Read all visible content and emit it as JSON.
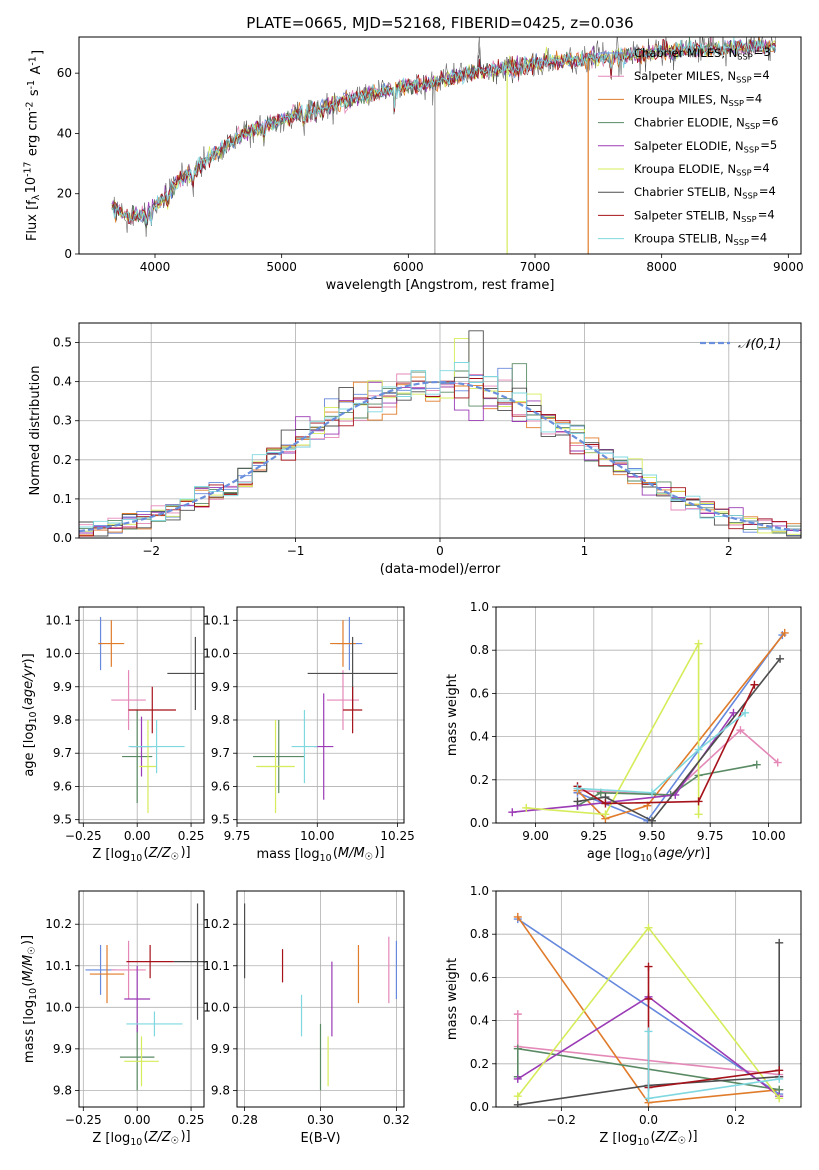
{
  "figure_title": "PLATE=0665, MJD=52168, FIBERID=0425, z=0.036",
  "series": [
    {
      "label": "Chabrier MILES, N$_{SSP}$=3",
      "name": "Chabrier MILES",
      "nssp": "3",
      "color": "#6689dd"
    },
    {
      "label": "Salpeter MILES, N$_{SSP}$=4",
      "name": "Salpeter MILES",
      "nssp": "4",
      "color": "#e488b8"
    },
    {
      "label": "Kroupa MILES, N$_{SSP}$=4",
      "name": "Kroupa MILES",
      "nssp": "4",
      "color": "#e07b2a"
    },
    {
      "label": "Chabrier ELODIE, N$_{SSP}$=6",
      "name": "Chabrier ELODIE",
      "nssp": "6",
      "color": "#5a8a64"
    },
    {
      "label": "Salpeter ELODIE, N$_{SSP}$=5",
      "name": "Salpeter ELODIE",
      "nssp": "5",
      "color": "#9b3bb5"
    },
    {
      "label": "Kroupa ELODIE, N$_{SSP}$=4",
      "name": "Kroupa ELODIE",
      "nssp": "4",
      "color": "#d6ec5a"
    },
    {
      "label": "Chabrier STELIB, N$_{SSP}$=4",
      "name": "Chabrier STELIB",
      "nssp": "4",
      "color": "#4d4d4d"
    },
    {
      "label": "Salpeter STELIB, N$_{SSP}$=4",
      "name": "Salpeter STELIB",
      "nssp": "4",
      "color": "#a5121a"
    },
    {
      "label": "Kroupa STELIB, N$_{SSP}$=4",
      "name": "Kroupa STELIB",
      "nssp": "4",
      "color": "#7fd8df"
    }
  ],
  "chart_data": [
    {
      "id": "spectrum",
      "type": "line",
      "title": "PLATE=0665, MJD=52168, FIBERID=0425, z=0.036",
      "xlabel": "wavelength [Angstrom, rest frame]",
      "ylabel": "Flux [f$_\\lambda$10$^{-17}$ erg cm$^{-2}$ s$^{-1}$ A$^{-1}$]",
      "xlim": [
        3400,
        9100
      ],
      "ylim": [
        0,
        72
      ],
      "xticks": [
        4000,
        5000,
        6000,
        7000,
        8000,
        9000
      ],
      "yticks": [
        0,
        20,
        40,
        60
      ],
      "continuum": [
        [
          3650,
          16
        ],
        [
          3800,
          12
        ],
        [
          3900,
          13
        ],
        [
          4000,
          16
        ],
        [
          4100,
          20
        ],
        [
          4200,
          25
        ],
        [
          4300,
          27
        ],
        [
          4400,
          31
        ],
        [
          4500,
          34
        ],
        [
          4700,
          40
        ],
        [
          4900,
          43
        ],
        [
          5100,
          46
        ],
        [
          5300,
          48
        ],
        [
          5500,
          51
        ],
        [
          5700,
          53
        ],
        [
          5900,
          55
        ],
        [
          6100,
          56
        ],
        [
          6300,
          58
        ],
        [
          6500,
          60
        ],
        [
          6700,
          61
        ],
        [
          7000,
          63
        ],
        [
          7200,
          64
        ],
        [
          7500,
          65
        ],
        [
          7800,
          66
        ],
        [
          8000,
          67
        ],
        [
          8400,
          68
        ],
        [
          8900,
          69
        ]
      ],
      "gaps": [
        [
          6210,
          6190
        ],
        [
          6780,
          5
        ],
        [
          7420,
          3
        ]
      ],
      "legend_loc": "upper right",
      "grid": false
    },
    {
      "id": "residuals",
      "type": "histogram",
      "xlabel": "(data-model)/error",
      "ylabel": "Normed distribution",
      "xlim": [
        -2.5,
        2.5
      ],
      "ylim": [
        0,
        0.55
      ],
      "xticks": [
        -2,
        -1,
        0,
        1,
        2
      ],
      "yticks": [
        0.0,
        0.1,
        0.2,
        0.3,
        0.4,
        0.5
      ],
      "bin_width": 0.1,
      "reference_label": "$\\mathcal{N}(0,1)$",
      "reference_curve": "gaussian mean 0 sigma 1",
      "legend_loc": "upper right",
      "grid": true
    },
    {
      "id": "age_vs_Z",
      "type": "errorbar",
      "xlabel": "Z [log$_{10}$($Z/Z_\\odot$)]",
      "ylabel": "age  [log$_{10}$($age/yr$)]",
      "xlim": [
        -0.27,
        0.31
      ],
      "ylim": [
        9.49,
        10.14
      ],
      "xticks": [
        -0.25,
        0.0,
        0.25
      ],
      "yticks": [
        9.5,
        9.6,
        9.7,
        9.8,
        9.9,
        10.0,
        10.1
      ],
      "points": [
        {
          "series": 0,
          "x": -0.17,
          "xerr": 0.01,
          "y": 10.03,
          "yerr": 0.08
        },
        {
          "series": 1,
          "x": -0.04,
          "xerr": 0.08,
          "y": 9.86,
          "yerr": 0.09
        },
        {
          "series": 2,
          "x": -0.12,
          "xerr": 0.06,
          "y": 10.03,
          "yerr": 0.07
        },
        {
          "series": 3,
          "x": 0.0,
          "xerr": 0.07,
          "y": 9.69,
          "yerr": 0.14
        },
        {
          "series": 4,
          "x": 0.02,
          "xerr": 0.05,
          "y": 9.72,
          "yerr": 0.09
        },
        {
          "series": 5,
          "x": 0.05,
          "xerr": 0.04,
          "y": 9.66,
          "yerr": 0.14
        },
        {
          "series": 6,
          "x": 0.27,
          "xerr": 0.13,
          "y": 9.94,
          "yerr": 0.11
        },
        {
          "series": 7,
          "x": 0.07,
          "xerr": 0.11,
          "y": 9.83,
          "yerr": 0.07
        },
        {
          "series": 8,
          "x": 0.09,
          "xerr": 0.13,
          "y": 9.72,
          "yerr": 0.08
        }
      ],
      "grid": true
    },
    {
      "id": "age_vs_mass",
      "type": "errorbar",
      "xlabel": "mass [log$_{10}$($M/M_\\odot$)]",
      "ylabel": "",
      "xlim": [
        9.75,
        10.27
      ],
      "ylim": [
        9.49,
        10.14
      ],
      "xticks": [
        9.75,
        10.0,
        10.25
      ],
      "yticks": [
        9.5,
        9.6,
        9.7,
        9.8,
        9.9,
        10.0,
        10.1
      ],
      "points": [
        {
          "series": 0,
          "x": 10.1,
          "xerr": 0.04,
          "y": 10.03,
          "yerr": 0.08
        },
        {
          "series": 1,
          "x": 10.08,
          "xerr": 0.05,
          "y": 9.86,
          "yerr": 0.09
        },
        {
          "series": 2,
          "x": 10.08,
          "xerr": 0.04,
          "y": 10.03,
          "yerr": 0.07
        },
        {
          "series": 3,
          "x": 9.88,
          "xerr": 0.08,
          "y": 9.69,
          "yerr": 0.11
        },
        {
          "series": 4,
          "x": 10.02,
          "xerr": 0.03,
          "y": 9.72,
          "yerr": 0.16
        },
        {
          "series": 5,
          "x": 9.87,
          "xerr": 0.06,
          "y": 9.66,
          "yerr": 0.14
        },
        {
          "series": 6,
          "x": 10.11,
          "xerr": 0.14,
          "y": 9.94,
          "yerr": 0.11
        },
        {
          "series": 7,
          "x": 10.11,
          "xerr": 0.03,
          "y": 9.83,
          "yerr": 0.07
        },
        {
          "series": 8,
          "x": 9.96,
          "xerr": 0.04,
          "y": 9.72,
          "yerr": 0.11
        }
      ],
      "grid": true
    },
    {
      "id": "weight_vs_age",
      "type": "line",
      "xlabel": "age  [log$_{10}$($age/yr$)]",
      "ylabel": "mass weight",
      "xlim": [
        8.83,
        10.14
      ],
      "ylim": [
        0,
        1.0
      ],
      "xticks": [
        9.0,
        9.25,
        9.5,
        9.75,
        10.0
      ],
      "yticks": [
        0.0,
        0.2,
        0.4,
        0.6,
        0.8,
        1.0
      ],
      "lines": [
        {
          "series": 0,
          "x": [
            9.18,
            9.48,
            10.06
          ],
          "y": [
            0.14,
            0.01,
            0.87
          ]
        },
        {
          "series": 1,
          "x": [
            9.18,
            9.58,
            9.88,
            10.04
          ],
          "y": [
            0.15,
            0.13,
            0.43,
            0.28
          ]
        },
        {
          "series": 2,
          "x": [
            9.18,
            9.3,
            9.48,
            10.07
          ],
          "y": [
            0.15,
            0.02,
            0.08,
            0.88
          ]
        },
        {
          "series": 3,
          "x": [
            9.18,
            9.28,
            9.58,
            9.7,
            9.95
          ],
          "y": [
            0.08,
            0.14,
            0.13,
            0.22,
            0.27
          ]
        },
        {
          "series": 4,
          "x": [
            8.9,
            9.18,
            9.6,
            9.85
          ],
          "y": [
            0.05,
            0.08,
            0.13,
            0.51
          ]
        },
        {
          "series": 5,
          "x": [
            8.96,
            9.3,
            9.7,
            9.7
          ],
          "y": [
            0.07,
            0.04,
            0.83,
            0.04
          ]
        },
        {
          "series": 6,
          "x": [
            9.18,
            9.3,
            9.5,
            10.05
          ],
          "y": [
            0.1,
            0.12,
            0.01,
            0.76
          ]
        },
        {
          "series": 7,
          "x": [
            9.18,
            9.3,
            9.7,
            9.94
          ],
          "y": [
            0.17,
            0.09,
            0.1,
            0.64
          ]
        },
        {
          "series": 8,
          "x": [
            9.18,
            9.5,
            9.7,
            9.9
          ],
          "y": [
            0.16,
            0.14,
            0.34,
            0.51
          ]
        }
      ],
      "grid": true
    },
    {
      "id": "mass_vs_Z",
      "type": "errorbar",
      "xlabel": "Z [log$_{10}$($Z/Z_\\odot$)]",
      "ylabel": "mass [log$_{10}$($M/M_\\odot$)]",
      "xlim": [
        -0.27,
        0.31
      ],
      "ylim": [
        9.76,
        10.28
      ],
      "xticks": [
        -0.25,
        0.0,
        0.25
      ],
      "yticks": [
        9.8,
        9.9,
        10.0,
        10.1,
        10.2
      ],
      "points": [
        {
          "series": 0,
          "x": -0.17,
          "xerr": 0.07,
          "y": 10.09,
          "yerr": 0.06
        },
        {
          "series": 1,
          "x": -0.04,
          "xerr": 0.08,
          "y": 10.09,
          "yerr": 0.07
        },
        {
          "series": 2,
          "x": -0.14,
          "xerr": 0.08,
          "y": 10.08,
          "yerr": 0.07
        },
        {
          "series": 3,
          "x": 0.0,
          "xerr": 0.08,
          "y": 9.88,
          "yerr": 0.08
        },
        {
          "series": 4,
          "x": 0.0,
          "xerr": 0.06,
          "y": 10.02,
          "yerr": 0.08
        },
        {
          "series": 5,
          "x": 0.02,
          "xerr": 0.08,
          "y": 9.87,
          "yerr": 0.06
        },
        {
          "series": 6,
          "x": 0.28,
          "xerr": 0.11,
          "y": 10.11,
          "yerr": 0.14
        },
        {
          "series": 7,
          "x": 0.06,
          "xerr": 0.11,
          "y": 10.11,
          "yerr": 0.04
        },
        {
          "series": 8,
          "x": 0.08,
          "xerr": 0.13,
          "y": 9.96,
          "yerr": 0.03
        }
      ],
      "grid": true
    },
    {
      "id": "mass_vs_ebv",
      "type": "errorbar",
      "xlabel": "E(B-V)",
      "ylabel": "",
      "xlim": [
        0.278,
        0.322
      ],
      "ylim": [
        9.76,
        10.28
      ],
      "xticks": [
        0.28,
        0.3,
        0.32
      ],
      "yticks": [
        9.8,
        9.9,
        10.0,
        10.1,
        10.2
      ],
      "points": [
        {
          "series": 0,
          "x": 0.32,
          "xerr": 0.0,
          "y": 10.09,
          "yerr": 0.07
        },
        {
          "series": 1,
          "x": 0.318,
          "xerr": 0.0,
          "y": 10.09,
          "yerr": 0.08
        },
        {
          "series": 2,
          "x": 0.31,
          "xerr": 0.0,
          "y": 10.08,
          "yerr": 0.07
        },
        {
          "series": 3,
          "x": 0.3,
          "xerr": 0.0,
          "y": 9.88,
          "yerr": 0.08
        },
        {
          "series": 4,
          "x": 0.303,
          "xerr": 0.0,
          "y": 10.02,
          "yerr": 0.09
        },
        {
          "series": 5,
          "x": 0.302,
          "xerr": 0.0,
          "y": 9.87,
          "yerr": 0.06
        },
        {
          "series": 6,
          "x": 0.28,
          "xerr": 0.0,
          "y": 10.16,
          "yerr": 0.09
        },
        {
          "series": 7,
          "x": 0.29,
          "xerr": 0.0,
          "y": 10.1,
          "yerr": 0.04
        },
        {
          "series": 8,
          "x": 0.295,
          "xerr": 0.0,
          "y": 9.98,
          "yerr": 0.05
        }
      ],
      "grid": true
    },
    {
      "id": "weight_vs_Z",
      "type": "line",
      "xlabel": "Z [log$_{10}$($Z/Z_\\odot$)]",
      "ylabel": "mass weight",
      "xlim": [
        -0.35,
        0.35
      ],
      "ylim": [
        0,
        1.0
      ],
      "xticks": [
        -0.2,
        0.0,
        0.2
      ],
      "yticks": [
        0.0,
        0.2,
        0.4,
        0.6,
        0.8,
        1.0
      ],
      "lines": [
        {
          "series": 0,
          "x": [
            -0.3,
            0.3
          ],
          "y": [
            0.87,
            0.06
          ]
        },
        {
          "series": 1,
          "x": [
            -0.3,
            -0.3,
            0.3,
            0.3
          ],
          "y": [
            0.43,
            0.28,
            0.15,
            0.14
          ]
        },
        {
          "series": 2,
          "x": [
            -0.3,
            0.0,
            0.3
          ],
          "y": [
            0.88,
            0.02,
            0.08
          ]
        },
        {
          "series": 3,
          "x": [
            -0.3,
            -0.3,
            0.3
          ],
          "y": [
            0.14,
            0.27,
            0.08
          ]
        },
        {
          "series": 4,
          "x": [
            -0.3,
            0.0,
            0.3
          ],
          "y": [
            0.13,
            0.51,
            0.05
          ]
        },
        {
          "series": 5,
          "x": [
            -0.3,
            0.0,
            0.3
          ],
          "y": [
            0.05,
            0.83,
            0.04
          ]
        },
        {
          "series": 6,
          "x": [
            -0.3,
            0.0,
            0.3,
            0.3
          ],
          "y": [
            0.01,
            0.1,
            0.14,
            0.76
          ]
        },
        {
          "series": 7,
          "x": [
            0.0,
            0.0,
            0.0,
            0.3
          ],
          "y": [
            0.65,
            0.5,
            0.09,
            0.17
          ]
        },
        {
          "series": 8,
          "x": [
            0.0,
            0.0,
            0.3
          ],
          "y": [
            0.35,
            0.04,
            0.13
          ]
        }
      ],
      "grid": true
    }
  ]
}
